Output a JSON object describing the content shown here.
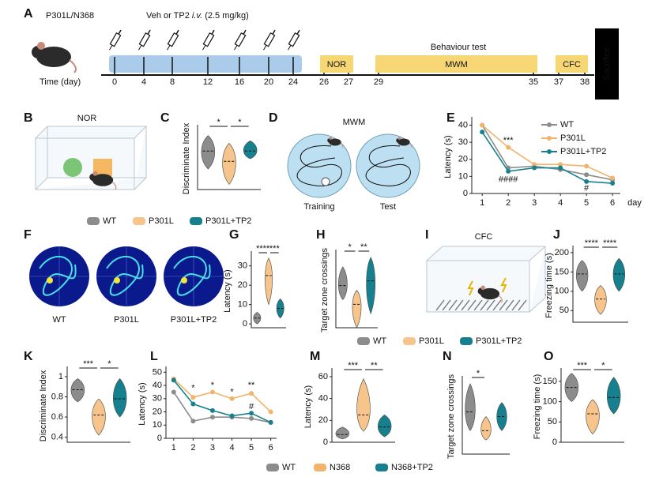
{
  "panel_labels": [
    "A",
    "B",
    "C",
    "D",
    "E",
    "F",
    "G",
    "H",
    "I",
    "J",
    "K",
    "L",
    "M",
    "N",
    "O"
  ],
  "timeline": {
    "model": "P301L/N368",
    "treatment": [
      "Veh or TP2 ",
      "i.v.",
      " (2.5 mg/kg)"
    ],
    "axis_label": "Time (day)",
    "days": [
      0,
      4,
      8,
      12,
      16,
      20,
      24,
      26,
      27,
      29,
      35,
      37,
      38
    ],
    "stages": [
      "NOR",
      "MWM",
      "CFC"
    ],
    "phase": "Behaviour test",
    "end": "Sacrifice"
  },
  "diagrams": {
    "nor": "NOR",
    "mwm": {
      "title": "MWM",
      "labels": [
        "Training",
        "Test"
      ]
    },
    "cfc": "CFC",
    "heatmaps": [
      "WT",
      "P301L",
      "P301L+TP2"
    ]
  },
  "legends": [
    {
      "items": [
        {
          "name": "WT",
          "color": "#8c8c8c"
        },
        {
          "name": "P301L",
          "color": "#f7c58c"
        },
        {
          "name": "P301L+TP2",
          "color": "#16808f"
        }
      ]
    },
    {
      "items": [
        {
          "name": "WT",
          "color": "#8c8c8c"
        },
        {
          "name": "P301L",
          "color": "#f7c58c"
        },
        {
          "name": "P301L+TP2",
          "color": "#16808f"
        }
      ]
    }
  ],
  "chart_data": [
    {
      "type": "violin",
      "ylabel": "Discriminate Index",
      "colors": [
        "#8c8c8c",
        "#f7c58c",
        "#16808f"
      ],
      "values": [
        0.95,
        0.75,
        0.95
      ],
      "ranges": [
        [
          0.6,
          1.25
        ],
        [
          0.3,
          1.1
        ],
        [
          0.8,
          1.15
        ]
      ],
      "ylim": [
        0.2,
        1.4
      ],
      "yticks": [],
      "annotations": [
        "*",
        "*"
      ]
    },
    {
      "type": "line",
      "ylabel": "Latency (s)",
      "xlabel": "day",
      "x": [
        1,
        2,
        3,
        4,
        5,
        6
      ],
      "xlim": [
        0.6,
        6.3
      ],
      "xticks": [
        1,
        2,
        3,
        4,
        5,
        6
      ],
      "ylim": [
        0,
        43
      ],
      "yticks": [
        0,
        10,
        20,
        30,
        40
      ],
      "legend": "inside",
      "series": [
        {
          "name": "WT",
          "color": "#8c8c8c",
          "values": [
            40,
            15,
            16,
            14,
            11,
            8
          ]
        },
        {
          "name": "P301L",
          "color": "#f2b36b",
          "values": [
            40,
            27,
            17,
            17,
            16,
            9
          ]
        },
        {
          "name": "P301L+TP2",
          "color": "#16808f",
          "values": [
            36,
            13,
            15,
            15,
            7,
            6
          ]
        }
      ],
      "annotations": [
        "***",
        "####",
        "#"
      ]
    },
    {
      "type": "violin",
      "ylabel": "Latency (s)",
      "colors": [
        "#8c8c8c",
        "#f7c58c",
        "#16808f"
      ],
      "values": [
        3,
        25,
        8
      ],
      "ranges": [
        [
          0,
          6
        ],
        [
          10,
          34
        ],
        [
          3,
          13
        ]
      ],
      "ylim": [
        -2,
        36
      ],
      "yticks": [
        0,
        10,
        20,
        30
      ],
      "annotations": [
        "****",
        "***"
      ]
    },
    {
      "type": "violin",
      "ylabel": "Target zone crossings",
      "colors": [
        "#8c8c8c",
        "#f7c58c",
        "#16808f"
      ],
      "values": [
        9,
        5,
        10
      ],
      "ranges": [
        [
          6,
          13
        ],
        [
          0,
          8
        ],
        [
          3,
          15
        ]
      ],
      "ylim": [
        0,
        16
      ],
      "yticks": [],
      "annotations": [
        "*",
        "**"
      ]
    },
    {
      "type": "violin",
      "ylabel": "Freezing time (s)",
      "colors": [
        "#8c8c8c",
        "#f7c58c",
        "#16808f"
      ],
      "values": [
        145,
        80,
        145
      ],
      "ranges": [
        [
          100,
          180
        ],
        [
          40,
          115
        ],
        [
          100,
          185
        ]
      ],
      "ylim": [
        20,
        210
      ],
      "yticks": [
        50,
        100,
        150,
        200
      ],
      "annotations": [
        "****",
        "****"
      ]
    },
    {
      "type": "violin",
      "ylabel": "Discriminate Index",
      "colors": [
        "#8c8c8c",
        "#f7c58c",
        "#16808f"
      ],
      "values": [
        0.87,
        0.62,
        0.78
      ],
      "ranges": [
        [
          0.75,
          0.98
        ],
        [
          0.42,
          0.78
        ],
        [
          0.6,
          0.98
        ]
      ],
      "ylim": [
        0.35,
        1.07
      ],
      "yticks": [
        0.4,
        0.6,
        0.8,
        1
      ],
      "annotations": [
        "***",
        "*"
      ]
    },
    {
      "type": "line",
      "ylabel": "Latency (s)",
      "x": [
        1,
        2,
        3,
        4,
        5,
        6
      ],
      "xlim": [
        0.6,
        6.3
      ],
      "xticks": [
        1,
        2,
        3,
        4,
        5,
        6
      ],
      "ylim": [
        0,
        52
      ],
      "yticks": [
        0,
        10,
        20,
        30,
        40,
        50
      ],
      "legend": "below",
      "series": [
        {
          "name": "WT",
          "color": "#8c8c8c",
          "values": [
            35,
            13,
            16,
            16,
            15,
            12
          ]
        },
        {
          "name": "N368",
          "color": "#f2b36b",
          "values": [
            45,
            31,
            35,
            30,
            34,
            20
          ]
        },
        {
          "name": "N368+TP2",
          "color": "#16808f",
          "values": [
            44,
            26,
            21,
            17,
            19,
            12
          ]
        }
      ],
      "annotations": [
        "*",
        "*",
        "*",
        "**",
        "#"
      ]
    },
    {
      "type": "violin",
      "ylabel": "Latency (s)",
      "colors": [
        "#8c8c8c",
        "#f7c58c",
        "#16808f"
      ],
      "values": [
        7,
        25,
        14
      ],
      "ranges": [
        [
          3,
          14
        ],
        [
          10,
          58
        ],
        [
          5,
          25
        ]
      ],
      "ylim": [
        0,
        65
      ],
      "yticks": [
        0,
        20,
        40,
        60
      ],
      "annotations": [
        "***",
        "**"
      ]
    },
    {
      "type": "violin",
      "ylabel": "Target zone crossings",
      "colors": [
        "#8c8c8c",
        "#f7c58c",
        "#16808f"
      ],
      "values": [
        9,
        5,
        8
      ],
      "ranges": [
        [
          5,
          15
        ],
        [
          3,
          8
        ],
        [
          5,
          11
        ]
      ],
      "ylim": [
        0,
        16
      ],
      "yticks": [],
      "annotations": [
        "*"
      ]
    },
    {
      "type": "violin",
      "ylabel": "Freezing time (s)",
      "colors": [
        "#8c8c8c",
        "#f7c58c",
        "#16808f"
      ],
      "values": [
        135,
        70,
        110
      ],
      "ranges": [
        [
          100,
          170
        ],
        [
          20,
          105
        ],
        [
          70,
          160
        ]
      ],
      "ylim": [
        0,
        175
      ],
      "yticks": [
        0,
        50,
        100,
        150
      ],
      "annotations": [
        "***",
        "*"
      ]
    }
  ]
}
